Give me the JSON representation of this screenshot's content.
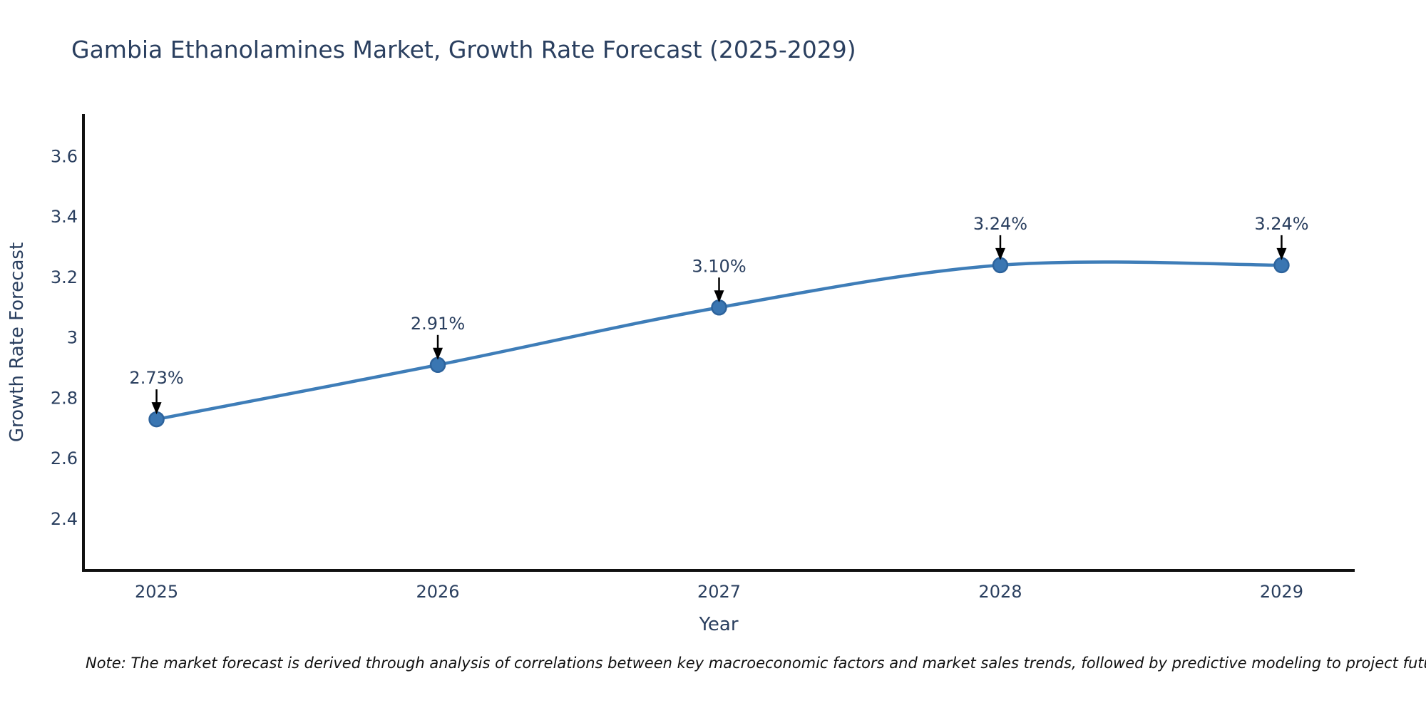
{
  "page": {
    "background": "#ffffff"
  },
  "chart_data": {
    "type": "line",
    "title": "Gambia Ethanolamines Market, Growth Rate Forecast (2025-2029)",
    "xlabel": "Year",
    "ylabel": "Growth Rate Forecast",
    "x": [
      2025,
      2026,
      2027,
      2028,
      2029
    ],
    "y": [
      2.73,
      2.91,
      3.1,
      3.24,
      3.24
    ],
    "point_labels": [
      "2.73%",
      "2.91%",
      "3.10%",
      "3.24%",
      "3.24%"
    ],
    "xtick_labels": [
      "2025",
      "2026",
      "2027",
      "2028",
      "2029"
    ],
    "yticks": [
      2.4,
      2.6,
      2.8,
      3,
      3.2,
      3.4,
      3.6
    ],
    "ytick_labels": [
      "2.4",
      "2.6",
      "2.8",
      "3",
      "3.2",
      "3.4",
      "3.6"
    ],
    "xlim": [
      2024.74,
      2029.26
    ],
    "ylim": [
      2.23,
      3.74
    ],
    "grid": false,
    "legend": "none",
    "line_shape": "spline",
    "colors": {
      "line": "#3e7db8",
      "marker_fill": "#3a76b2",
      "marker_edge": "#2d639c",
      "axis_line": "#111111",
      "label_text": "#2a3f5f",
      "arrow": "#000000",
      "title_text": "#2a3f5f"
    },
    "note": "Note: The market forecast is derived through analysis of correlations between key macroeconomic factors and market sales trends, followed by predictive modeling to project future sales"
  }
}
